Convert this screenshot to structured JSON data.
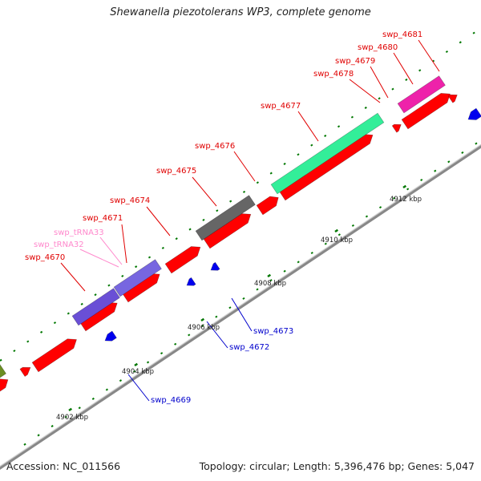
{
  "title": "Shewanella piezotolerans WP3, complete genome",
  "footer": {
    "accession": "Accession: NC_011566",
    "topology": "Topology: circular; Length: 5,396,476 bp; Genes: 5,047"
  },
  "colors": {
    "cds": "#ff0000",
    "forward_label": "#e00000",
    "reverse_label": "#0000cc",
    "reverse_feature": "#0000ee",
    "trna_label": "#ff88cc",
    "backbone": "#999999",
    "tick": "#007700"
  },
  "scale_labels": [
    "4902 kbp",
    "4904 kbp",
    "4906 kbp",
    "4908 kbp",
    "4910 kbp",
    "4912 kbp"
  ],
  "forward_labels": [
    "swp_4670",
    "swp_4671",
    "swp_4674",
    "swp_4675",
    "swp_4676",
    "swp_4677",
    "swp_4678",
    "swp_4679",
    "swp_4680",
    "swp_4681"
  ],
  "trna_labels": [
    "swp_tRNA33",
    "swp_tRNA32"
  ],
  "reverse_labels": [
    "swp_4669",
    "swp_4672",
    "swp_4673"
  ],
  "feature_colors": [
    "#6a4fd6",
    "#7766e0",
    "#666666",
    "#33ee99",
    "#ee22aa",
    "#6b8e23"
  ]
}
